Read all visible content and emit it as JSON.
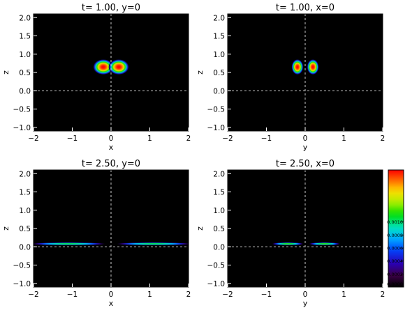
{
  "chart_data": [
    {
      "type": "heatmap",
      "title": "t= 1.00, y=0",
      "xlabel": "x",
      "ylabel": "z",
      "xlim": [
        -2,
        2
      ],
      "ylim": [
        -1.1,
        2.1
      ],
      "xticks": [
        "−2",
        "−1",
        "0",
        "1",
        "2"
      ],
      "yticks": [
        "−1.0",
        "−0.5",
        "0.0",
        "0.5",
        "1.0",
        "1.5",
        "2.0"
      ],
      "guides": {
        "x": 0,
        "y": 0
      },
      "blobs": [
        {
          "cx": -0.2,
          "cz": 0.65,
          "rx": 0.26,
          "rz": 0.21,
          "peak": 0.0018
        },
        {
          "cx": 0.2,
          "cz": 0.65,
          "rx": 0.26,
          "rz": 0.21,
          "peak": 0.0018
        }
      ]
    },
    {
      "type": "heatmap",
      "title": "t= 1.00, x=0",
      "xlabel": "y",
      "ylabel": "z",
      "xlim": [
        -2,
        2
      ],
      "ylim": [
        -1.1,
        2.1
      ],
      "xticks": [
        "−2",
        "−1",
        "0",
        "1",
        "2"
      ],
      "yticks": [
        "−1.0",
        "−0.5",
        "0.0",
        "0.5",
        "1.0",
        "1.5",
        "2.0"
      ],
      "guides": {
        "x": 0,
        "y": 0
      },
      "blobs": [
        {
          "cx": -0.2,
          "cz": 0.65,
          "rx": 0.15,
          "rz": 0.21,
          "peak": 0.0018
        },
        {
          "cx": 0.2,
          "cz": 0.65,
          "rx": 0.15,
          "rz": 0.21,
          "peak": 0.0018
        }
      ]
    },
    {
      "type": "heatmap",
      "title": "t= 2.50, y=0",
      "xlabel": "x",
      "ylabel": "z",
      "xlim": [
        -2,
        2
      ],
      "ylim": [
        -1.1,
        2.1
      ],
      "xticks": [
        "−2",
        "−1",
        "0",
        "1",
        "2"
      ],
      "yticks": [
        "−1.0",
        "−0.5",
        "0.0",
        "0.5",
        "1.0",
        "1.5",
        "2.0"
      ],
      "guides": {
        "x": 0,
        "y": 0
      },
      "blobs": [
        {
          "cx": -1.1,
          "cz": 0.08,
          "rx": 0.95,
          "rz": 0.035,
          "peak": 0.0011
        },
        {
          "cx": 1.1,
          "cz": 0.08,
          "rx": 0.95,
          "rz": 0.035,
          "peak": 0.0011
        }
      ]
    },
    {
      "type": "heatmap",
      "title": "t= 2.50, x=0",
      "xlabel": "y",
      "ylabel": "z",
      "xlim": [
        -2,
        2
      ],
      "ylim": [
        -1.1,
        2.1
      ],
      "xticks": [
        "−2",
        "−1",
        "0",
        "1",
        "2"
      ],
      "yticks": [
        "−1.0",
        "−0.5",
        "0.0",
        "0.5",
        "1.0",
        "1.5",
        "2.0"
      ],
      "guides": {
        "x": 0,
        "y": 0
      },
      "blobs": [
        {
          "cx": -0.45,
          "cz": 0.08,
          "rx": 0.4,
          "rz": 0.035,
          "peak": 0.0012
        },
        {
          "cx": 0.5,
          "cz": 0.08,
          "rx": 0.4,
          "rz": 0.035,
          "peak": 0.0012
        }
      ]
    }
  ],
  "colorbar": {
    "min": 0.0,
    "max": 0.0018,
    "ticks": [
      "0.0000",
      "0.0002",
      "0.0004",
      "0.0006",
      "0.0008",
      "0.0010"
    ],
    "tick_values": [
      0.0,
      0.0002,
      0.0004,
      0.0006,
      0.0008,
      0.001
    ],
    "colormap": "rainbow"
  },
  "colors": {
    "background": "#000000",
    "guide": "#c8c8c8"
  }
}
